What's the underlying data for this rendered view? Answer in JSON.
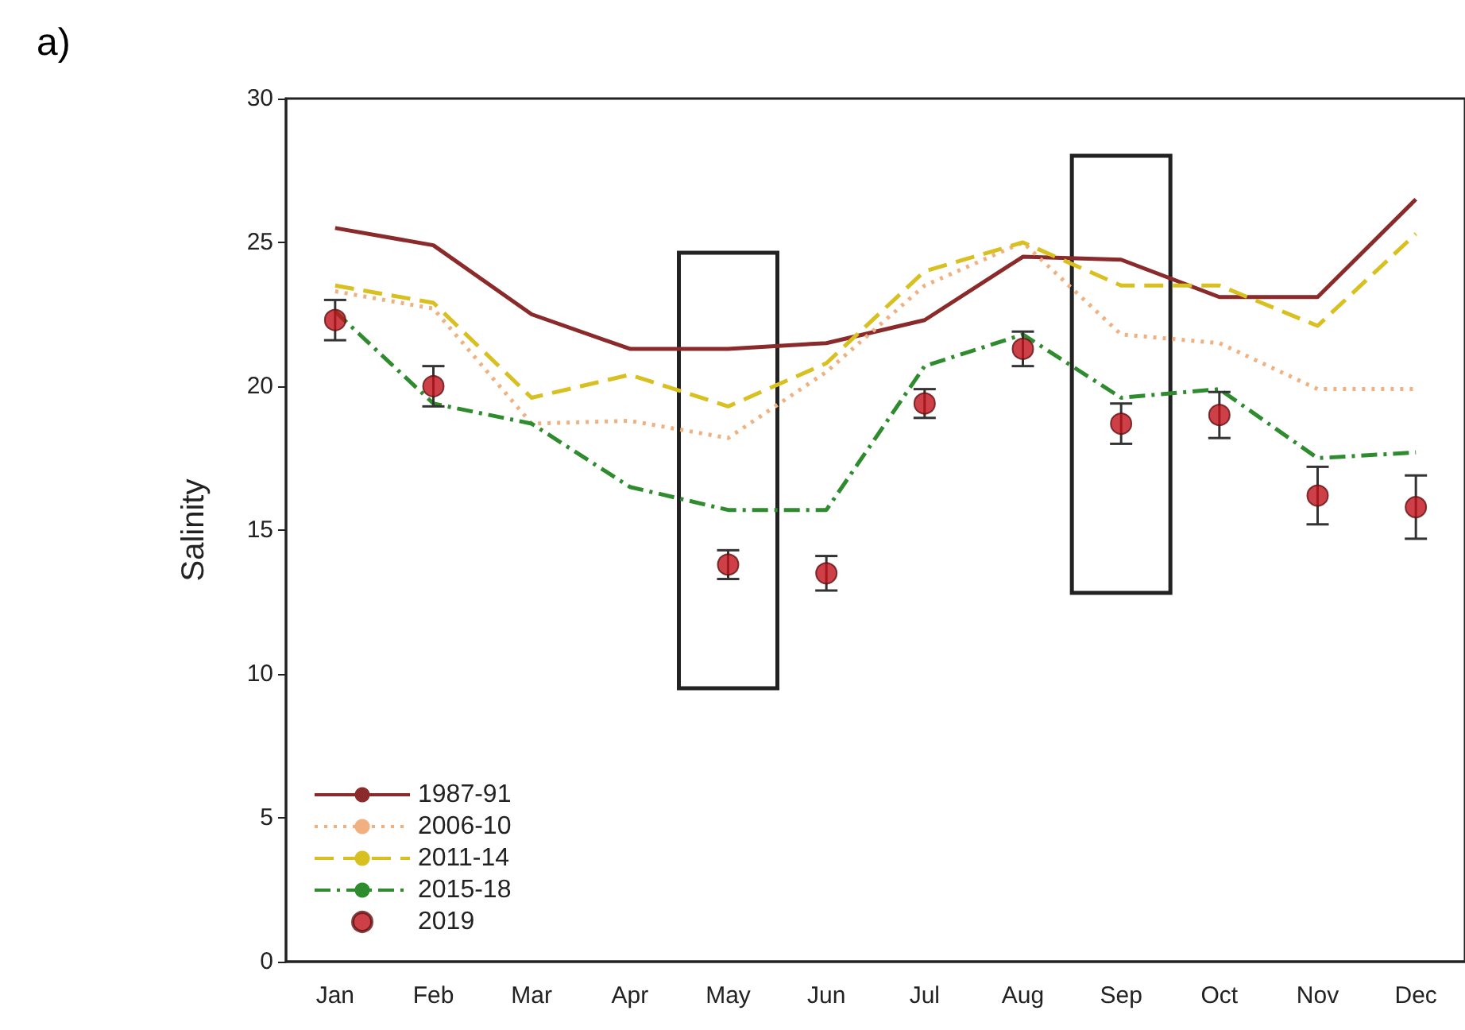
{
  "chart_data": {
    "type": "line",
    "title": "a)",
    "ylabel": "Salinity",
    "categories": [
      "Jan",
      "Feb",
      "Mar",
      "Apr",
      "May",
      "Jun",
      "Jul",
      "Aug",
      "Sep",
      "Oct",
      "Nov",
      "Dec"
    ],
    "series": [
      {
        "name": "1987-91",
        "color": "#8b2a2a",
        "line_style": "solid",
        "values": [
          25.5,
          24.9,
          22.5,
          21.3,
          21.3,
          21.5,
          22.3,
          24.5,
          24.4,
          23.1,
          23.1,
          26.5
        ]
      },
      {
        "name": "2006-10",
        "color": "#f0b080",
        "line_style": "dotted",
        "values": [
          23.3,
          22.7,
          18.7,
          18.8,
          18.2,
          20.5,
          23.5,
          25.0,
          21.8,
          21.5,
          19.9,
          19.9
        ]
      },
      {
        "name": "2011-14",
        "color": "#d8c020",
        "line_style": "dashed",
        "values": [
          23.5,
          22.9,
          19.6,
          20.4,
          19.3,
          20.8,
          24.0,
          25.0,
          23.5,
          23.5,
          22.1,
          25.3
        ]
      },
      {
        "name": "2015-18",
        "color": "#2e8b2e",
        "line_style": "dashdot",
        "values": [
          22.6,
          19.4,
          18.7,
          16.5,
          15.7,
          15.7,
          20.7,
          21.8,
          19.6,
          19.9,
          17.5,
          17.7
        ]
      },
      {
        "name": "2019",
        "type": "scatter",
        "marker": "circle",
        "color": "#c0101a",
        "values": [
          22.3,
          20.0,
          null,
          null,
          13.8,
          13.5,
          19.4,
          21.3,
          18.7,
          19.0,
          16.2,
          15.8
        ],
        "errors": [
          0.7,
          0.7,
          null,
          null,
          0.5,
          0.6,
          0.5,
          0.6,
          0.7,
          0.8,
          1.0,
          1.1
        ]
      }
    ],
    "ylim": [
      0,
      30
    ],
    "yticks": [
      0,
      5,
      10,
      15,
      20,
      25,
      30
    ],
    "legend": "bottom left"
  }
}
